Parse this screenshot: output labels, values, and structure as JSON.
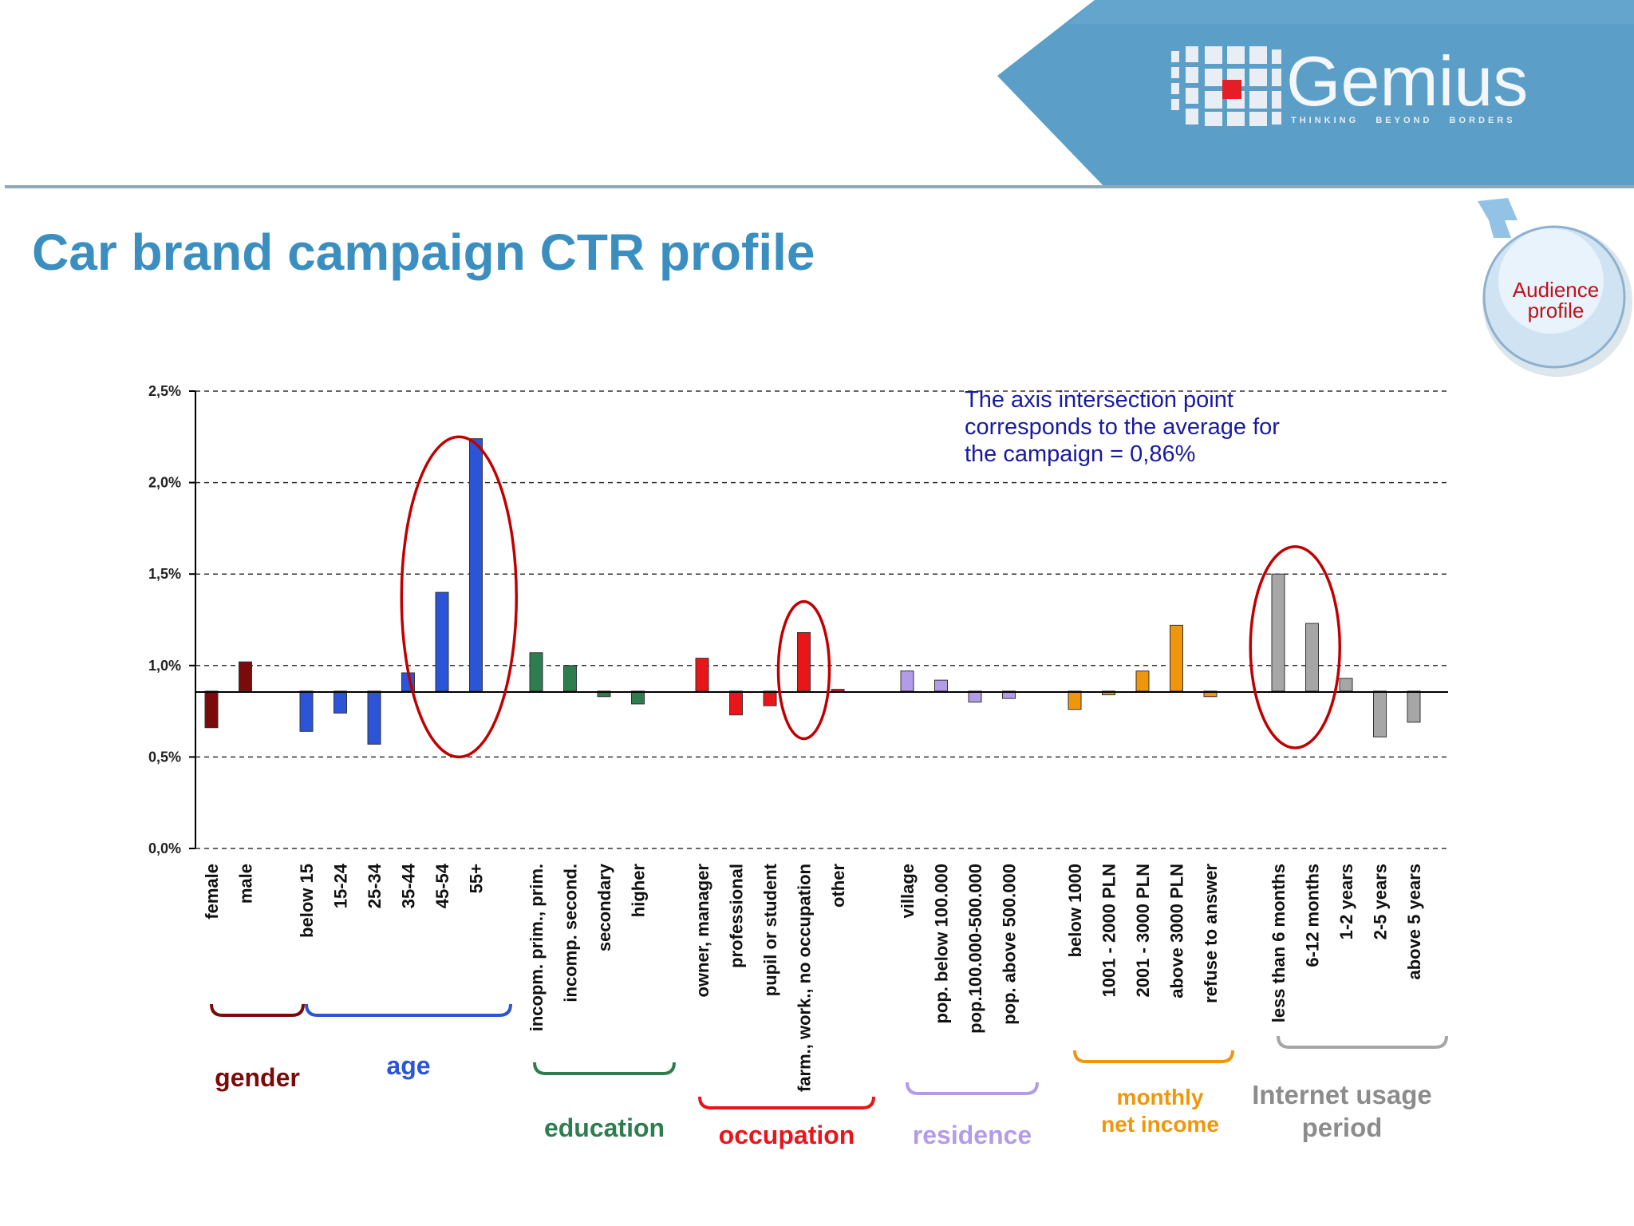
{
  "slide": {
    "title": "Car brand campaign CTR profile",
    "logo_text": "Gemius",
    "logo_tagline": "THINKING   BEYOND   BORDERS",
    "badge_line1": "Audience",
    "badge_line2": "profile",
    "note_lines": [
      "The axis intersection point",
      "corresponds to the average for",
      "the campaign = 0,86%"
    ]
  },
  "colors": {
    "title": "#3b8fc0",
    "header_band": "#5b9fc9",
    "logo_red": "#e41e26",
    "highlight_ring": "#c00000",
    "note_text": "#1a1aa0"
  },
  "chart_data": {
    "type": "bar",
    "baseline": 0.86,
    "ylim": [
      0,
      2.5
    ],
    "y_ticks": [
      "0,0%",
      "0,5%",
      "1,0%",
      "1,5%",
      "2,0%",
      "2,5%"
    ],
    "grid": "horizontal dashed",
    "groups": [
      {
        "name": "gender",
        "label": "gender",
        "color": "#7b0a0a",
        "categories": [
          "female",
          "male"
        ],
        "values": [
          0.66,
          1.02
        ]
      },
      {
        "name": "age",
        "label": "age",
        "color": "#2b54d6",
        "categories": [
          "below 15",
          "15-24",
          "25-34",
          "35-44",
          "45-54",
          "55+"
        ],
        "values": [
          0.64,
          0.74,
          0.57,
          0.96,
          1.4,
          2.24
        ]
      },
      {
        "name": "education",
        "label": "education",
        "color": "#2e7d4f",
        "categories": [
          "incopm. prim., prim.",
          "incomp. second.",
          "secondary",
          "higher"
        ],
        "values": [
          1.07,
          1.0,
          0.83,
          0.79
        ]
      },
      {
        "name": "occupation",
        "label": "occupation",
        "color": "#e8161b",
        "categories": [
          "owner, manager",
          "professional",
          "pupil or student",
          "farm., work., no occupation",
          "other"
        ],
        "values": [
          1.04,
          0.73,
          0.78,
          1.18,
          0.87
        ]
      },
      {
        "name": "residence",
        "label": "residence",
        "color": "#b39ce6",
        "categories": [
          "village",
          "pop. below 100.000",
          "pop.100.000-500.000",
          "pop. above 500.000"
        ],
        "values": [
          0.97,
          0.92,
          0.8,
          0.82
        ]
      },
      {
        "name": "income",
        "label_lines": [
          "monthly",
          "net income"
        ],
        "color": "#f0960a",
        "categories": [
          "below 1000",
          "1001 - 2000 PLN",
          "2001 - 3000 PLN",
          "above 3000 PLN",
          "refuse to answer"
        ],
        "values": [
          0.76,
          0.84,
          0.97,
          1.22,
          0.83
        ]
      },
      {
        "name": "internet",
        "label_lines": [
          "Internet usage",
          "period"
        ],
        "color": "#a6a6a6",
        "categories": [
          "less than 6 months",
          "6-12 months",
          "1-2 years",
          "2-5 years",
          "above 5 years"
        ],
        "values": [
          1.5,
          1.23,
          0.93,
          0.61,
          0.69
        ]
      }
    ]
  }
}
